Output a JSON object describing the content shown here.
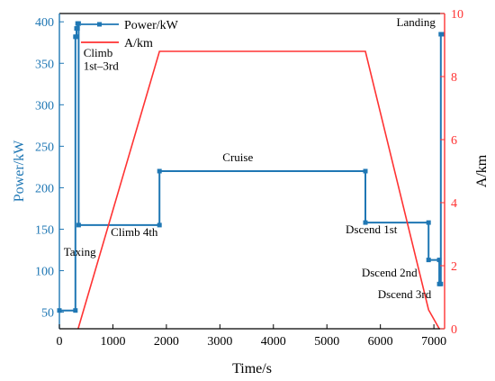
{
  "chart_data": {
    "type": "line",
    "x_axis": {
      "label": "Time/s",
      "range": [
        0,
        7200
      ],
      "ticks": [
        0,
        1000,
        2000,
        3000,
        4000,
        5000,
        6000,
        7000
      ]
    },
    "y_left": {
      "label": "Power/kW",
      "range": [
        30,
        410
      ],
      "ticks": [
        50,
        100,
        150,
        200,
        250,
        300,
        350,
        400
      ],
      "color": "#1f77b4"
    },
    "y_right": {
      "label": "A/km",
      "range": [
        0,
        10
      ],
      "ticks": [
        0,
        2,
        4,
        6,
        8,
        10
      ],
      "color": "#ff3333"
    },
    "legend_position": "top-left",
    "series": [
      {
        "name": "Power/kW",
        "axis": "left",
        "color": "#1f77b4",
        "step": true,
        "x": [
          0,
          300,
          300,
          320,
          320,
          340,
          340,
          360,
          360,
          1870,
          1870,
          5720,
          5720,
          6900,
          6900,
          7100,
          7100,
          7130,
          7130,
          7160
        ],
        "y": [
          52,
          52,
          382,
          382,
          392,
          392,
          398,
          398,
          155,
          155,
          220,
          220,
          158,
          158,
          113,
          113,
          84,
          84,
          385,
          385
        ]
      },
      {
        "name": "A/km",
        "axis": "right",
        "color": "#ff3333",
        "step": false,
        "x": [
          350,
          1870,
          5720,
          6900,
          7100
        ],
        "y": [
          0,
          8.8,
          8.8,
          0.6,
          0
        ]
      }
    ],
    "annotations": [
      {
        "text": "Climb",
        "x": 450,
        "y": 358
      },
      {
        "text": "1st–3rd",
        "x": 450,
        "y": 342
      },
      {
        "text": "Taxing",
        "x": 80,
        "y": 118
      },
      {
        "text": "Climb 4th",
        "x": 960,
        "y": 142
      },
      {
        "text": "Cruise",
        "x": 3050,
        "y": 232
      },
      {
        "text": "Dscend 1st",
        "x": 5350,
        "y": 145
      },
      {
        "text": "Dscend 2nd",
        "x": 5650,
        "y": 93
      },
      {
        "text": "Dscend 3rd",
        "x": 5950,
        "y": 67
      },
      {
        "text": "Landing",
        "x": 6300,
        "y": 395
      }
    ]
  }
}
